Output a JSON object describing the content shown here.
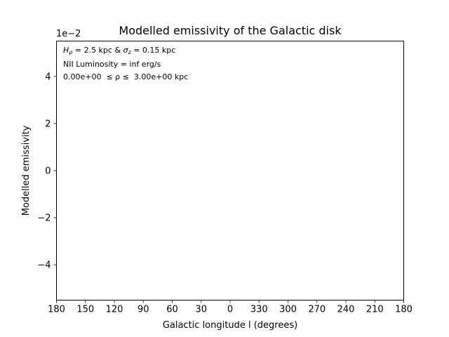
{
  "chart_data": {
    "type": "line",
    "title": "Modelled emissivity of the Galactic disk",
    "xlabel": "Galactic longitude l (degrees)",
    "ylabel": "Modelled emissivity",
    "y_offset_label": "1e−2",
    "x_tick_labels": [
      "180",
      "150",
      "120",
      "90",
      "60",
      "30",
      "0",
      "330",
      "300",
      "270",
      "240",
      "210",
      "180"
    ],
    "y_ticks": [
      -4,
      -2,
      0,
      2,
      4
    ],
    "y_tick_labels": [
      "−4",
      "−2",
      "0",
      "2",
      "4"
    ],
    "xlim": [
      0,
      12
    ],
    "ylim": [
      -5.5,
      5.5
    ],
    "grid": false,
    "series": [],
    "annotations": {
      "line1_prefix": "H",
      "line1_sub": "ρ",
      "line1_mid": " = 2.5 kpc & ",
      "line1_sigma": "σ",
      "line1_sigma_sub": "z",
      "line1_suffix": " = 0.15 kpc",
      "line2": "NII Luminosity = inf erg/s",
      "line3": "0.00e+00  ≤ ρ ≤  3.00e+00 kpc"
    }
  }
}
